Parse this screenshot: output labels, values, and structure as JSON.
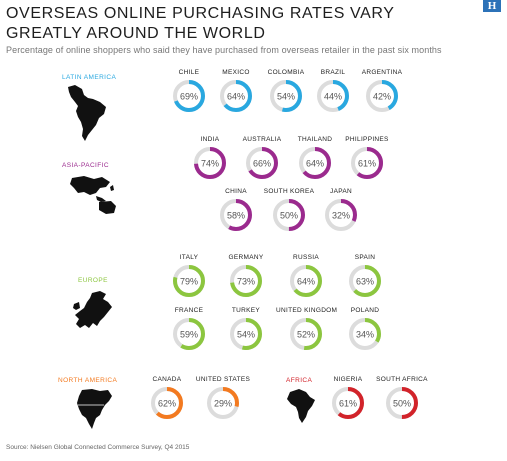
{
  "header": {
    "title": "OVERSEAS ONLINE PURCHASING RATES VARY GREATLY AROUND THE WORLD",
    "subtitle": "Percentage of online shoppers who said they have purchased from overseas retailer in the past six months",
    "logo": "H"
  },
  "source": "Source: Nielsen Global Connected Commerce Survey, Q4 2015",
  "colors": {
    "latin_america": "#29a8e0",
    "asia_pacific": "#9b2a8e",
    "europe": "#8cc63f",
    "north_america": "#f37a20",
    "africa": "#d2232a",
    "ring_track": "#dcdcdc"
  },
  "chart_data": {
    "type": "donut",
    "unit": "%",
    "regions": [
      {
        "name": "LATIN AMERICA",
        "color": "#29a8e0",
        "countries": [
          {
            "name": "CHILE",
            "value": 69,
            "label": "69%"
          },
          {
            "name": "MEXICO",
            "value": 64,
            "label": "64%"
          },
          {
            "name": "COLOMBIA",
            "value": 54,
            "label": "54%"
          },
          {
            "name": "BRAZIL",
            "value": 44,
            "label": "44%"
          },
          {
            "name": "ARGENTINA",
            "value": 42,
            "label": "42%"
          }
        ]
      },
      {
        "name": "ASIA-PACIFIC",
        "color": "#9b2a8e",
        "countries": [
          {
            "name": "INDIA",
            "value": 74,
            "label": "74%"
          },
          {
            "name": "AUSTRALIA",
            "value": 66,
            "label": "66%"
          },
          {
            "name": "THAILAND",
            "value": 64,
            "label": "64%"
          },
          {
            "name": "PHILIPPINES",
            "value": 61,
            "label": "61%"
          },
          {
            "name": "CHINA",
            "value": 58,
            "label": "58%"
          },
          {
            "name": "SOUTH KOREA",
            "value": 50,
            "label": "50%"
          },
          {
            "name": "JAPAN",
            "value": 32,
            "label": "32%"
          }
        ]
      },
      {
        "name": "EUROPE",
        "color": "#8cc63f",
        "countries": [
          {
            "name": "ITALY",
            "value": 79,
            "label": "79%"
          },
          {
            "name": "GERMANY",
            "value": 73,
            "label": "73%"
          },
          {
            "name": "RUSSIA",
            "value": 64,
            "label": "64%"
          },
          {
            "name": "SPAIN",
            "value": 63,
            "label": "63%"
          },
          {
            "name": "FRANCE",
            "value": 59,
            "label": "59%"
          },
          {
            "name": "TURKEY",
            "value": 54,
            "label": "54%"
          },
          {
            "name": "UNITED KINGDOM",
            "value": 52,
            "label": "52%"
          },
          {
            "name": "POLAND",
            "value": 34,
            "label": "34%"
          }
        ]
      },
      {
        "name": "NORTH AMERICA",
        "color": "#f37a20",
        "countries": [
          {
            "name": "CANADA",
            "value": 62,
            "label": "62%"
          },
          {
            "name": "UNITED STATES",
            "value": 29,
            "label": "29%"
          }
        ]
      },
      {
        "name": "AFRICA",
        "color": "#d2232a",
        "countries": [
          {
            "name": "NIGERIA",
            "value": 61,
            "label": "61%"
          },
          {
            "name": "SOUTH AFRICA",
            "value": 50,
            "label": "50%"
          }
        ]
      }
    ]
  }
}
